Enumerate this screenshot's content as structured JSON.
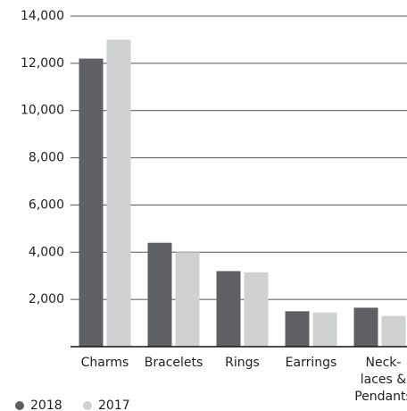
{
  "chart_data": {
    "type": "bar",
    "categories": [
      "Charms",
      "Bracelets",
      "Rings",
      "Earrings",
      [
        "Neck-",
        "laces &",
        "Pendants"
      ]
    ],
    "series": [
      {
        "name": "2018",
        "color": "#5f6063",
        "values": [
          12200,
          4400,
          3200,
          1500,
          1650
        ]
      },
      {
        "name": "2017",
        "color": "#d0d2d1",
        "values": [
          13000,
          4000,
          3150,
          1450,
          1300
        ]
      }
    ],
    "ylim": [
      0,
      14000
    ],
    "yticks": [
      {
        "value": 2000,
        "label": "2,000"
      },
      {
        "value": 4000,
        "label": "4,000"
      },
      {
        "value": 6000,
        "label": "6,000"
      },
      {
        "value": 8000,
        "label": "8,000"
      },
      {
        "value": 10000,
        "label": "10,000"
      },
      {
        "value": 12000,
        "label": "12,000"
      },
      {
        "value": 14000,
        "label": "14,000"
      }
    ],
    "grid": true
  }
}
